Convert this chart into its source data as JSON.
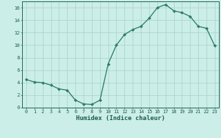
{
  "x": [
    0,
    1,
    2,
    3,
    4,
    5,
    6,
    7,
    8,
    9,
    10,
    11,
    12,
    13,
    14,
    15,
    16,
    17,
    18,
    19,
    20,
    21,
    22,
    23
  ],
  "y": [
    4.5,
    4.1,
    4.0,
    3.6,
    3.0,
    2.8,
    1.2,
    0.6,
    0.5,
    1.2,
    7.0,
    10.0,
    11.7,
    12.5,
    13.0,
    14.3,
    16.0,
    16.5,
    15.5,
    15.2,
    14.6,
    13.0,
    12.7,
    9.9
  ],
  "line_color": "#2e7d6e",
  "marker": "D",
  "marker_size": 2.0,
  "bg_color": "#cceee8",
  "grid_color": "#aad4cc",
  "xlabel": "Humidex (Indice chaleur)",
  "xlabel_color": "#1a5c52",
  "tick_color": "#1a5c52",
  "ylim": [
    0,
    17
  ],
  "xlim": [
    -0.5,
    23.5
  ],
  "yticks": [
    0,
    2,
    4,
    6,
    8,
    10,
    12,
    14,
    16
  ],
  "xticks": [
    0,
    1,
    2,
    3,
    4,
    5,
    6,
    7,
    8,
    9,
    10,
    11,
    12,
    13,
    14,
    15,
    16,
    17,
    18,
    19,
    20,
    21,
    22,
    23
  ],
  "tick_fontsize": 5.0,
  "xlabel_fontsize": 6.5,
  "linewidth": 1.0
}
